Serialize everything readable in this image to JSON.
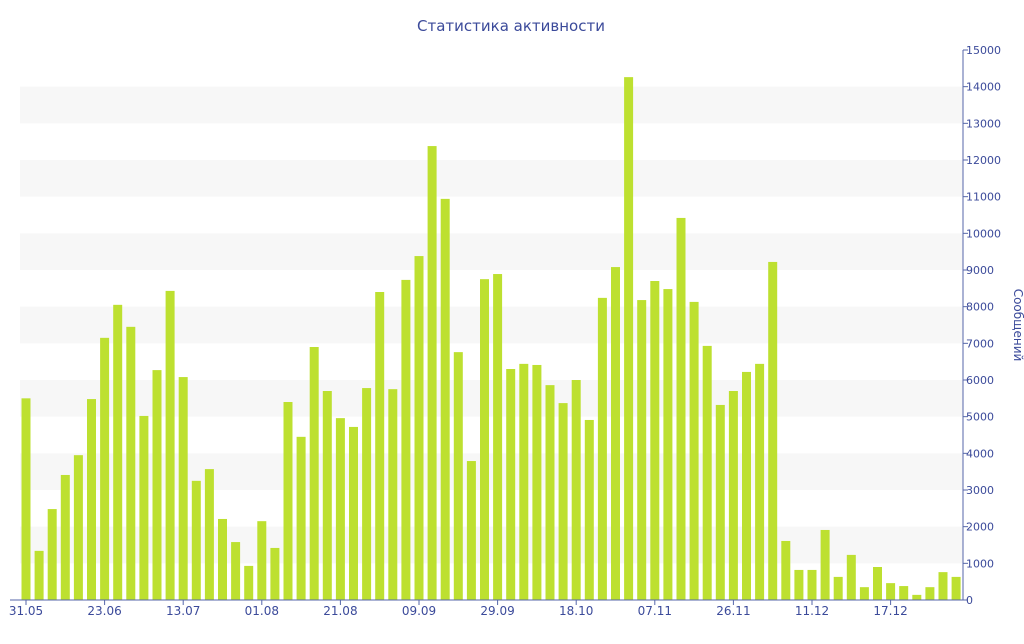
{
  "chart_data": {
    "type": "bar",
    "title": "Статистика активности",
    "xlabel": "",
    "ylabel": "Сообщений",
    "ylim": [
      0,
      15000
    ],
    "y_ticks": [
      0,
      1000,
      2000,
      3000,
      4000,
      5000,
      6000,
      7000,
      8000,
      9000,
      10000,
      11000,
      12000,
      13000,
      14000,
      15000
    ],
    "y_axis_side": "right",
    "x_tick_labels": [
      {
        "index": 0,
        "label": "31.05"
      },
      {
        "index": 6,
        "label": "23.06"
      },
      {
        "index": 12,
        "label": "13.07"
      },
      {
        "index": 18,
        "label": "01.08"
      },
      {
        "index": 24,
        "label": "21.08"
      },
      {
        "index": 30,
        "label": "09.09"
      },
      {
        "index": 36,
        "label": "29.09"
      },
      {
        "index": 42,
        "label": "18.10"
      },
      {
        "index": 48,
        "label": "07.11"
      },
      {
        "index": 54,
        "label": "26.11"
      },
      {
        "index": 60,
        "label": "11.12"
      },
      {
        "index": 66,
        "label": "17.12"
      }
    ],
    "values": [
      5500,
      1340,
      2480,
      3410,
      3950,
      5480,
      7150,
      8050,
      7450,
      5020,
      6270,
      8430,
      6080,
      3250,
      3570,
      2210,
      1580,
      930,
      2150,
      1420,
      5400,
      4450,
      6900,
      5700,
      4960,
      4720,
      5780,
      8400,
      5750,
      8730,
      9380,
      12380,
      10940,
      6760,
      3790,
      8750,
      8890,
      6300,
      6440,
      6410,
      5860,
      5370,
      6000,
      4910,
      8240,
      9080,
      14260,
      8180,
      8700,
      8480,
      10420,
      8130,
      6930,
      5320,
      5700,
      6220,
      6440,
      9220,
      1610,
      820,
      820,
      1910,
      630,
      1230,
      350,
      900,
      460,
      380,
      140,
      350,
      760,
      630
    ],
    "grid": "alternating horizontal bands",
    "legend": "none",
    "colors": {
      "bar": "#bde030",
      "text": "#3b4a9a",
      "band": "#f7f7f7",
      "axis": "#5566aa"
    }
  }
}
